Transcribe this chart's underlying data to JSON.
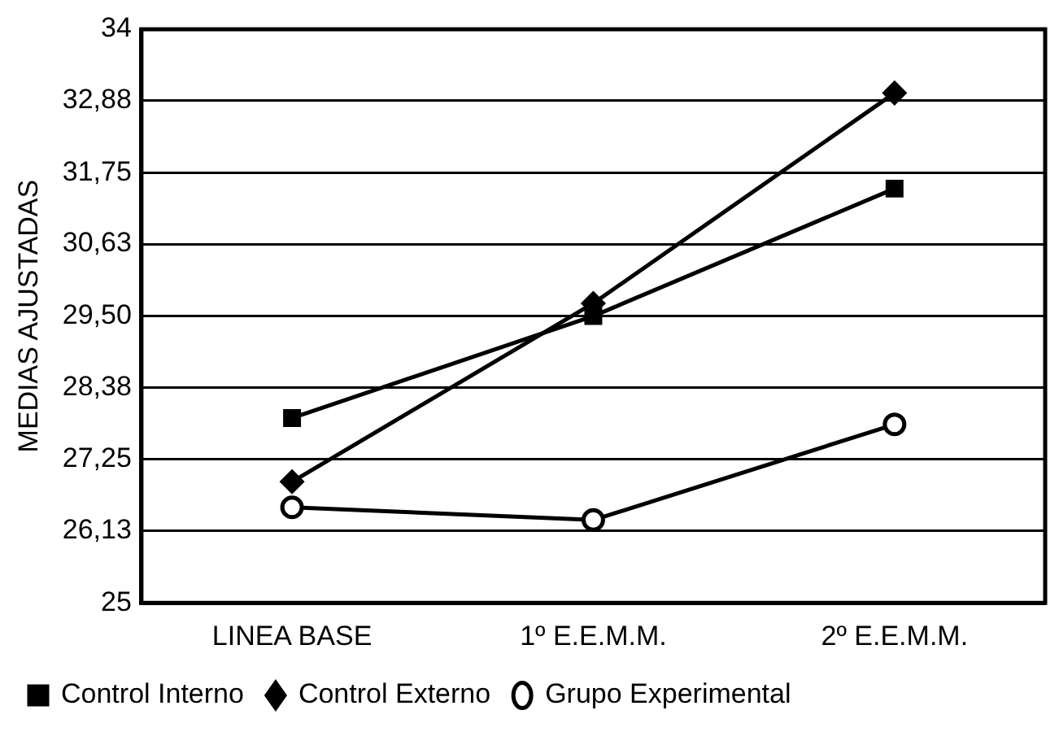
{
  "chart_data": {
    "type": "line",
    "ylabel": "MEDIAS AJUSTADAS",
    "categories": [
      "LINEA BASE",
      "1º E.E.M.M.",
      "2º E.E.M.M."
    ],
    "series": [
      {
        "name": "Control Interno",
        "color": "#000000",
        "marker": "square",
        "values": [
          27.9,
          29.5,
          31.5
        ]
      },
      {
        "name": "Control Externo",
        "color": "#000000",
        "marker": "diamond",
        "values": [
          26.9,
          29.7,
          33.0
        ]
      },
      {
        "name": "Grupo Experimental",
        "color": "#000000",
        "marker": "circle",
        "values": [
          26.5,
          26.3,
          27.8
        ]
      }
    ],
    "ylim": [
      25,
      34
    ],
    "yticks": [
      25,
      {
        "value": 26.13,
        "label": "26,13"
      },
      {
        "value": 27.25,
        "label": "27,25"
      },
      {
        "value": 28.38,
        "label": "28,38"
      },
      {
        "value": 29.5,
        "label": "29,50"
      },
      {
        "value": 30.63,
        "label": "30,63"
      },
      {
        "value": 31.75,
        "label": "31,75"
      },
      {
        "value": 32.88,
        "label": "32,88"
      },
      34
    ],
    "grid": "y",
    "legend": "bottom left"
  }
}
